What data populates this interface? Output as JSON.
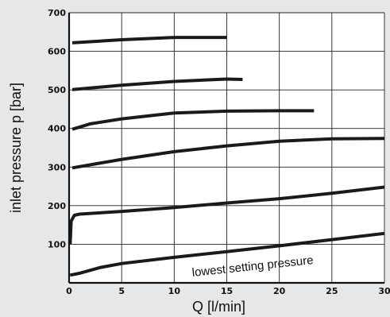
{
  "chart_data": {
    "type": "line",
    "xlabel": "Q [l/min]",
    "ylabel": "inlet pressure p [bar]",
    "xlim": [
      0,
      30
    ],
    "ylim": [
      0,
      700
    ],
    "xticks": [
      0,
      5,
      10,
      15,
      20,
      25,
      30
    ],
    "yticks": [
      100,
      200,
      300,
      400,
      500,
      600,
      700
    ],
    "grid": true,
    "line_color": "#1a1a1a",
    "series": [
      {
        "x": [
          0.3,
          5,
          10,
          15
        ],
        "y": [
          622,
          630,
          636,
          636
        ]
      },
      {
        "x": [
          0.3,
          5,
          10,
          15,
          16.5
        ],
        "y": [
          501,
          512,
          522,
          528,
          527
        ]
      },
      {
        "x": [
          0.3,
          2,
          5,
          10,
          15,
          20,
          23.3
        ],
        "y": [
          398,
          412,
          425,
          440,
          445,
          446,
          446
        ]
      },
      {
        "x": [
          0.3,
          5,
          10,
          15,
          20,
          25,
          30
        ],
        "y": [
          298,
          320,
          340,
          355,
          367,
          373,
          374
        ]
      },
      {
        "x": [
          0.1,
          0.2,
          0.5,
          1,
          5,
          10,
          15,
          20,
          25,
          30
        ],
        "y": [
          100,
          160,
          175,
          178,
          185,
          195,
          207,
          218,
          232,
          248
        ]
      },
      {
        "x": [
          0.1,
          1,
          3,
          5,
          10,
          15,
          20,
          25,
          30
        ],
        "y": [
          20,
          25,
          40,
          50,
          66,
          81,
          96,
          112,
          128
        ]
      }
    ],
    "annotations": [
      {
        "text": "lowest setting pressure",
        "x": 17.5,
        "y": 33
      }
    ]
  }
}
